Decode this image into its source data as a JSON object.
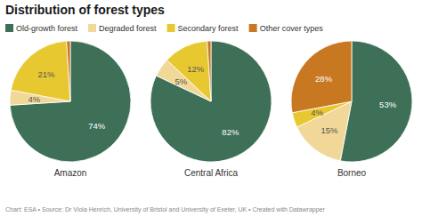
{
  "chart_data": {
    "type": "pie",
    "title": "Distribution of forest types",
    "categories": [
      "Old-growth forest",
      "Degraded forest",
      "Secondary forest",
      "Other cover types"
    ],
    "colors": [
      "#3d7057",
      "#f2d898",
      "#e8c830",
      "#c87820"
    ],
    "series": [
      {
        "name": "Amazon",
        "values": [
          74,
          4,
          21,
          1
        ],
        "value_labels": [
          "74%",
          "4%",
          "21%",
          null
        ]
      },
      {
        "name": "Central Africa",
        "values": [
          82,
          5,
          12,
          1
        ],
        "value_labels": [
          "82%",
          "5%",
          "12%",
          null
        ]
      },
      {
        "name": "Borneo",
        "values": [
          53,
          15,
          4,
          28
        ],
        "value_labels": [
          "53%",
          "15%",
          "4%",
          "28%"
        ]
      }
    ],
    "legend": "top-left",
    "data_labels": true,
    "annotations": [
      "Chart: ESA • Source: Dr Viola Henrich, University of Bristol and University of Exeter, UK • Created with Datawrapper"
    ]
  }
}
